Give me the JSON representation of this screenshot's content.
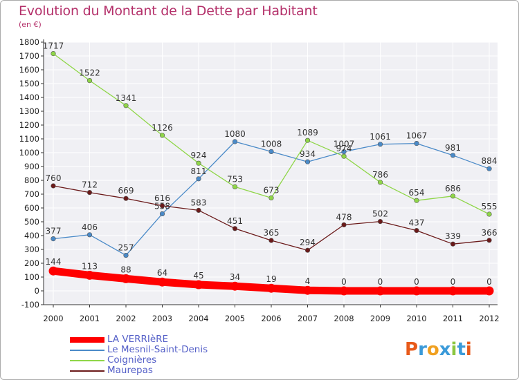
{
  "chart_data": {
    "type": "line",
    "title": "Evolution du Montant de la Dette par Habitant",
    "subtitle": "(en €)",
    "categories": [
      "2000",
      "2001",
      "2002",
      "2003",
      "2004",
      "2005",
      "2006",
      "2007",
      "2008",
      "2009",
      "2010",
      "2011",
      "2012"
    ],
    "ylim": [
      -100,
      1800
    ],
    "yticks": [
      -100,
      0,
      100,
      200,
      300,
      400,
      500,
      600,
      700,
      800,
      900,
      1000,
      1100,
      1200,
      1300,
      1400,
      1500,
      1600,
      1700,
      1800
    ],
    "grid": true,
    "legend_position": "bottom-left",
    "series": [
      {
        "name": "LA VERRIèRE",
        "color": "#ff0000",
        "values": [
          144,
          113,
          88,
          64,
          45,
          34,
          19,
          4,
          0,
          0,
          0,
          0,
          0
        ]
      },
      {
        "name": "Le Mesnil-Saint-Denis",
        "color": "#4a8ac8",
        "values": [
          377,
          406,
          257,
          558,
          811,
          1080,
          1008,
          934,
          1007,
          1061,
          1067,
          981,
          884
        ]
      },
      {
        "name": "Coignières",
        "color": "#8fd648",
        "values": [
          1717,
          1522,
          1341,
          1126,
          924,
          753,
          673,
          1089,
          974,
          786,
          654,
          686,
          555
        ]
      },
      {
        "name": "Maurepas",
        "color": "#6b1a1a",
        "values": [
          760,
          712,
          669,
          616,
          583,
          451,
          365,
          294,
          478,
          502,
          437,
          339,
          366
        ]
      }
    ]
  },
  "logo": {
    "text": "Proxiti",
    "letters": [
      "P",
      "r",
      "o",
      "x",
      "i",
      "t",
      "i"
    ],
    "colors": [
      "#e85a1a",
      "#3a9ad9",
      "#f0a020",
      "#3a9ad9",
      "#8cc640",
      "#3a9ad9",
      "#e85a1a"
    ]
  }
}
